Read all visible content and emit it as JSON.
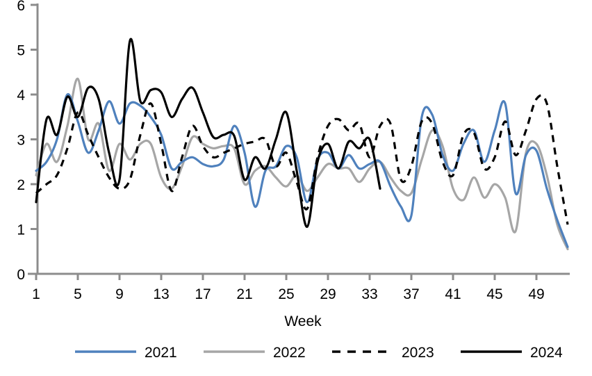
{
  "chart_data": {
    "type": "line",
    "title": "",
    "xlabel": "Week",
    "x_unit": "week",
    "x_range": [
      1,
      52
    ],
    "x_ticks": [
      1,
      5,
      9,
      13,
      17,
      21,
      25,
      29,
      33,
      37,
      41,
      45,
      49
    ],
    "y_ticks": [
      0,
      1,
      2,
      3,
      4,
      5,
      6
    ],
    "ylim": [
      0,
      6
    ],
    "grid": false,
    "legend_position": "bottom",
    "axis_color": "#8C8C8C",
    "series": [
      {
        "name": "2021",
        "color": "#4F81BD",
        "style": "solid",
        "values": [
          2.3,
          2.5,
          3.0,
          4.0,
          3.4,
          2.7,
          3.2,
          3.85,
          3.35,
          3.8,
          3.75,
          3.5,
          3.1,
          2.35,
          2.5,
          2.6,
          2.45,
          2.4,
          2.55,
          3.3,
          2.7,
          1.5,
          2.3,
          2.4,
          2.85,
          2.6,
          1.6,
          2.55,
          2.7,
          2.35,
          2.65,
          2.35,
          2.45,
          2.5,
          1.95,
          1.5,
          1.3,
          3.5,
          3.55,
          2.65,
          2.3,
          2.9,
          3.2,
          2.5,
          3.2,
          3.8,
          1.8,
          2.65,
          2.75,
          1.9,
          1.2,
          0.6
        ]
      },
      {
        "name": "2022",
        "color": "#A6A6A6",
        "style": "solid",
        "values": [
          2.2,
          2.9,
          2.5,
          3.3,
          4.35,
          3.0,
          3.35,
          2.3,
          2.9,
          2.55,
          2.9,
          2.9,
          2.15,
          1.9,
          2.4,
          3.05,
          2.9,
          2.8,
          2.85,
          2.8,
          2.0,
          2.3,
          2.4,
          2.15,
          1.95,
          2.2,
          1.85,
          2.15,
          2.45,
          2.35,
          2.35,
          2.05,
          2.35,
          2.5,
          2.15,
          1.85,
          1.8,
          2.55,
          3.2,
          2.85,
          1.9,
          1.65,
          2.15,
          1.7,
          2.0,
          1.7,
          0.95,
          2.7,
          2.9,
          2.2,
          1.1,
          0.55
        ]
      },
      {
        "name": "2023",
        "color": "#000000",
        "style": "dashed",
        "values": [
          1.8,
          2.0,
          2.2,
          2.8,
          3.6,
          3.1,
          2.6,
          2.15,
          1.9,
          2.1,
          3.1,
          3.8,
          2.9,
          1.85,
          2.6,
          3.3,
          2.85,
          2.6,
          2.7,
          2.8,
          2.9,
          2.95,
          3.0,
          2.4,
          2.7,
          2.05,
          1.45,
          2.6,
          3.3,
          3.45,
          3.2,
          3.35,
          2.6,
          3.3,
          3.35,
          2.1,
          2.4,
          3.4,
          3.35,
          2.5,
          2.2,
          3.1,
          3.15,
          2.35,
          2.6,
          3.4,
          2.65,
          3.2,
          3.9,
          3.8,
          2.4,
          1.1
        ]
      },
      {
        "name": "2024",
        "color": "#000000",
        "style": "solid",
        "values": [
          1.6,
          3.45,
          3.1,
          3.95,
          3.5,
          4.15,
          3.9,
          2.7,
          2.1,
          5.2,
          3.85,
          4.1,
          4.05,
          3.5,
          3.9,
          4.15,
          3.6,
          3.05,
          3.1,
          3.08,
          2.1,
          2.6,
          2.35,
          3.0,
          3.6,
          2.3,
          1.05,
          2.5,
          2.9,
          2.35,
          2.95,
          2.8,
          3.0,
          1.9
        ]
      }
    ]
  }
}
